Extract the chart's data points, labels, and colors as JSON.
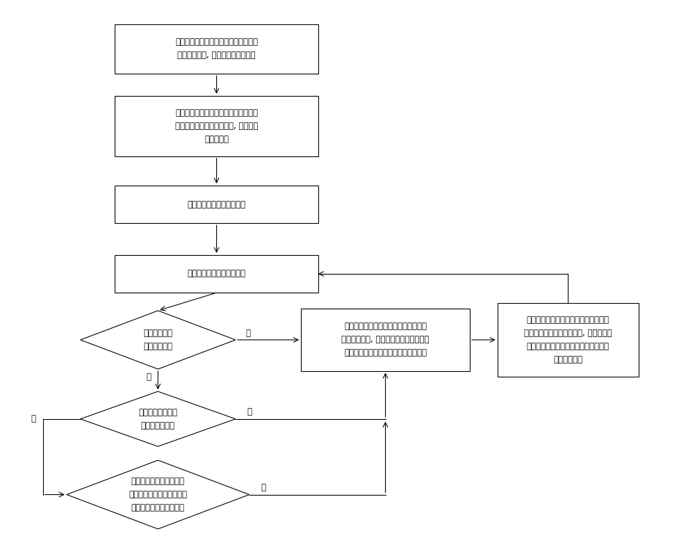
{
  "bg_color": "#ffffff",
  "box_color": "#ffffff",
  "box_edge_color": "#000000",
  "text_color": "#000000",
  "arrow_color": "#000000",
  "font_size": 8.5,
  "box1_text": "控制转向管柱的电机沿预设方向转动至\n达到堵转状态, 并设置零点转动圈数",
  "box2_text": "控制转向管柱的电机沿与预设方向相反\n的方向转动至达到堵转状态, 并设置第\n一预设阈值",
  "box3_text": "接收对转向管柱的调节指令",
  "box4_text": "获取对转向管柱的调节次数",
  "d1_text": "次数是否达到\n第二预设阈值",
  "box5_text": "控制转向管柱的电机沿预设方向转动至\n达到堵转状态, 并将电机在达到该堵转状\n态时的转动圈数作为新的零点转动圈数",
  "box6_text": "控制转向管柱的电机沿与预设方向相反\n的方向转动至达到堵转状态, 并将电机在\n达到该堵转状态时记录的变化量设置为\n第一预设阈值",
  "d2_text": "变化量为零且电机\n未达到堵转状态",
  "d3_text": "电机沿与预设方向相反的\n方向转动至达到堵转状态且\n变化量小于第一预设阈值",
  "yes": "是",
  "no": "否"
}
